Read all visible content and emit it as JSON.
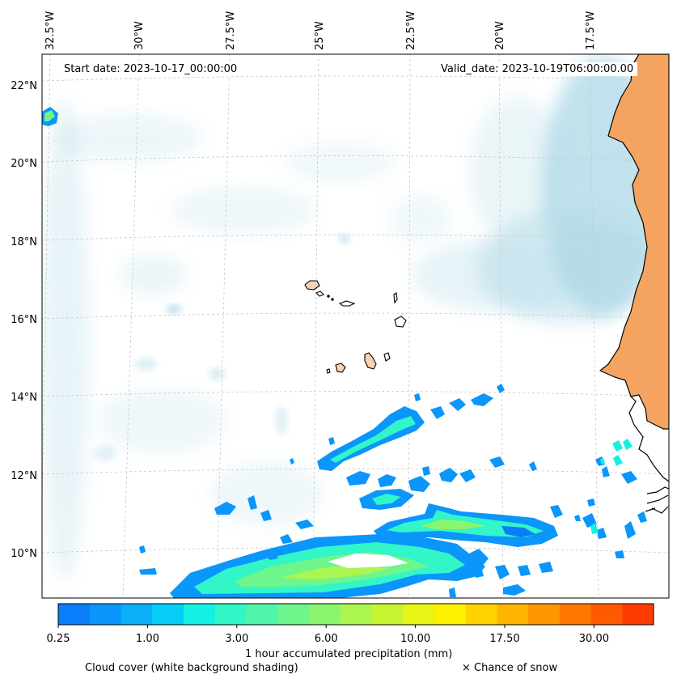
{
  "map": {
    "start_date": "Start date: 2023-10-17_00:00:00",
    "valid_date": "Valid_date: 2023-10-19T06:00:00.00",
    "longitude_labels": [
      "32.5°W",
      "30°W",
      "27.5°W",
      "25°W",
      "22.5°W",
      "20°W",
      "17.5°W"
    ],
    "latitude_labels": [
      "22°N",
      "20°N",
      "18°N",
      "16°N",
      "14°N",
      "12°N",
      "10°N"
    ],
    "colors": {
      "land": "#f4a460",
      "island": "#f8d2b4",
      "coastline": "#000000",
      "cloud": "#add8e6",
      "gridline": "#c8c8c8"
    }
  },
  "colorbar": {
    "label": "1 hour accumulated precipitation (mm)",
    "tick_labels": [
      "0.25",
      "1.00",
      "3.00",
      "6.00",
      "10.00",
      "17.50",
      "30.00"
    ],
    "colors": [
      "#0a7dfa",
      "#0a96fa",
      "#0aaff8",
      "#06cdf5",
      "#14f0e1",
      "#32f5c8",
      "#50f5aa",
      "#6ef58c",
      "#8cf56e",
      "#aaf550",
      "#c8f532",
      "#e6f514",
      "#fff000",
      "#ffd200",
      "#ffb400",
      "#ff9600",
      "#ff7800",
      "#ff5a00",
      "#ff3c00"
    ]
  },
  "legend": {
    "cloud_cover": "Cloud cover (white background shading)",
    "snow": "× Chance of snow"
  }
}
